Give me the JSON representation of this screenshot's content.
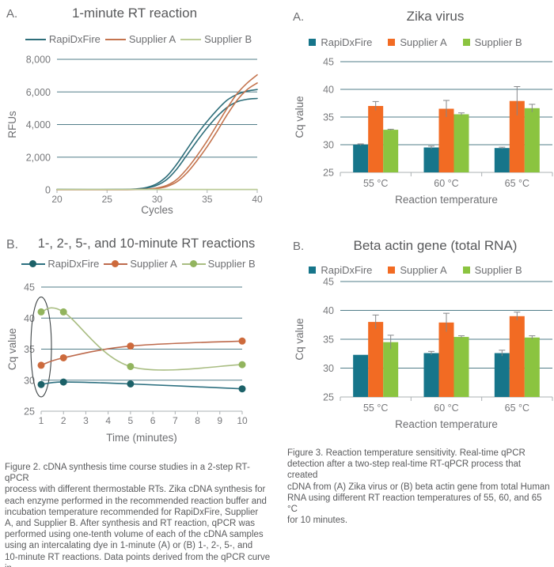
{
  "colors": {
    "grid": "#527e89",
    "axis": "#abb0b3",
    "tick_text": "#77787b",
    "axis_label": "#6d6e71",
    "title_text": "#57585a",
    "error_bar": "#85878a",
    "annotation": "#3f4547",
    "rapidxfire_bar": "#16758a",
    "supplier_a_bar": "#f26b23",
    "supplier_b_bar": "#8bc440"
  },
  "captions": {
    "figure2": "Figure 2. cDNA synthesis time course studies in a 2-step RT-qPCR\nprocess with different thermostable RTs. Zika cDNA synthesis for\neach enzyme performed in the recommended reaction buffer and\nincubation temperature recommended for RapiDxFire, Supplier\nA, and Supplier B. After synthesis and RT reaction, qPCR was\nperformed using one-tenth volume of each of the cDNA samples\nusing an intercalating dye in 1-minute (A) or (B) 1-, 2-, 5-, and\n10-minute RT reactions. Data points derived from the qPCR curve in\npanel A are encircled in panel B.",
    "figure3": "Figure 3. Reaction temperature sensitivity. Real-time qPCR\ndetection after a two-step real-time RT-qPCR process that created\ncDNA from (A) Zika virus or (B) beta actin gene from total Human\nRNA using different RT reaction temperatures of 55, 60, and 65 °C\nfor 10 minutes."
  },
  "chart_data": [
    {
      "id": "rt-1min",
      "panel_label": "A.",
      "title": "1-minute RT reaction",
      "type": "line",
      "legend_style": "line",
      "xlabel": "Cycles",
      "ylabel": "RFUs",
      "xlim": [
        20,
        40
      ],
      "ylim": [
        0,
        8000
      ],
      "xticks": [
        20,
        25,
        30,
        35,
        40
      ],
      "yticks": [
        {
          "v": 0,
          "label": "0"
        },
        {
          "v": 2000,
          "label": "2,000"
        },
        {
          "v": 4000,
          "label": "4,000"
        },
        {
          "v": 6000,
          "label": "6,000"
        },
        {
          "v": 8000,
          "label": "8,000"
        }
      ],
      "grid_values": [
        2000,
        4000,
        6000,
        8000
      ],
      "legend": [
        {
          "label": "RapiDxFire",
          "color": "#2e6e7a"
        },
        {
          "label": "Supplier A",
          "color": "#c4744e"
        },
        {
          "label": "Supplier B",
          "color": "#bccc96"
        }
      ],
      "traces": [
        {
          "series": "RapiDxFire",
          "line": "#2e6e7a",
          "points": [
            [
              20,
              20
            ],
            [
              26,
              20
            ],
            [
              28,
              60
            ],
            [
              29,
              150
            ],
            [
              30,
              380
            ],
            [
              31,
              850
            ],
            [
              32,
              1600
            ],
            [
              33,
              2500
            ],
            [
              34,
              3400
            ],
            [
              35,
              4200
            ],
            [
              36,
              4900
            ],
            [
              37,
              5500
            ],
            [
              38,
              5850
            ],
            [
              39,
              6050
            ],
            [
              40,
              6150
            ]
          ]
        },
        {
          "series": "RapiDxFire",
          "line": "#2e6e7a",
          "points": [
            [
              20,
              20
            ],
            [
              26,
              20
            ],
            [
              28,
              40
            ],
            [
              29,
              110
            ],
            [
              30,
              280
            ],
            [
              31,
              650
            ],
            [
              32,
              1300
            ],
            [
              33,
              2150
            ],
            [
              34,
              3000
            ],
            [
              35,
              3800
            ],
            [
              36,
              4500
            ],
            [
              37,
              5050
            ],
            [
              38,
              5400
            ],
            [
              39,
              5550
            ],
            [
              40,
              5600
            ]
          ]
        },
        {
          "series": "Supplier A",
          "line": "#c4744e",
          "points": [
            [
              20,
              10
            ],
            [
              27,
              10
            ],
            [
              29,
              40
            ],
            [
              30,
              110
            ],
            [
              31,
              280
            ],
            [
              32,
              650
            ],
            [
              33,
              1300
            ],
            [
              34,
              2100
            ],
            [
              35,
              3000
            ],
            [
              36,
              4000
            ],
            [
              37,
              5000
            ],
            [
              38,
              5900
            ],
            [
              39,
              6550
            ],
            [
              40,
              7050
            ]
          ]
        },
        {
          "series": "Supplier A",
          "line": "#c4744e",
          "points": [
            [
              20,
              10
            ],
            [
              27,
              10
            ],
            [
              29,
              30
            ],
            [
              30,
              80
            ],
            [
              31,
              210
            ],
            [
              32,
              500
            ],
            [
              33,
              1050
            ],
            [
              34,
              1800
            ],
            [
              35,
              2650
            ],
            [
              36,
              3600
            ],
            [
              37,
              4600
            ],
            [
              38,
              5500
            ],
            [
              39,
              6150
            ],
            [
              40,
              6550
            ]
          ]
        },
        {
          "series": "Supplier B",
          "line": "#bccc96",
          "points": [
            [
              20,
              20
            ],
            [
              30,
              20
            ],
            [
              40,
              20
            ]
          ]
        }
      ]
    },
    {
      "id": "rt-timecourse",
      "panel_label": "B.",
      "title": "1-, 2-, 5-, and 10-minute RT reactions",
      "type": "line",
      "legend_style": "line-dot",
      "xlabel": "Time (minutes)",
      "ylabel": "Cq value",
      "xlim": [
        1,
        10
      ],
      "ylim": [
        25,
        45
      ],
      "xticks": [
        1,
        2,
        3,
        4,
        5,
        6,
        7,
        8,
        9,
        10
      ],
      "yticks": [
        {
          "v": 25,
          "label": "25"
        },
        {
          "v": 30,
          "label": "30"
        },
        {
          "v": 35,
          "label": "35"
        },
        {
          "v": 40,
          "label": "40"
        },
        {
          "v": 45,
          "label": "45"
        }
      ],
      "grid_values": [
        30,
        35,
        40,
        45
      ],
      "legend": [
        {
          "label": "RapiDxFire",
          "color": "#2d7080",
          "dot": "#1c6168"
        },
        {
          "label": "Supplier A",
          "color": "#bd6a4c",
          "dot": "#cd6a3c"
        },
        {
          "label": "Supplier B",
          "color": "#a9bd82",
          "dot": "#92b45e"
        }
      ],
      "traces": [
        {
          "series": "RapiDxFire",
          "line": "#2d7080",
          "dot": "#1c6168",
          "points": [
            [
              1,
              29.3
            ],
            [
              2,
              29.7
            ],
            [
              5,
              29.4
            ],
            [
              10,
              28.6
            ]
          ]
        },
        {
          "series": "Supplier A",
          "line": "#bd6a4c",
          "dot": "#cd6a3c",
          "points": [
            [
              1,
              32.4
            ],
            [
              2,
              33.6
            ],
            [
              5,
              35.5
            ],
            [
              10,
              36.3
            ]
          ]
        },
        {
          "series": "Supplier B",
          "line": "#a9bd82",
          "dot": "#92b45e",
          "points": [
            [
              1,
              41.0
            ],
            [
              2,
              41.0
            ],
            [
              5,
              32.2
            ],
            [
              10,
              32.5
            ]
          ]
        }
      ],
      "annotation": {
        "type": "ellipse",
        "x": 1,
        "v_top": 43.4,
        "v_bottom": 27.3,
        "note": "encircles 1-minute data points from panel A"
      }
    },
    {
      "id": "zika-virus",
      "panel_label": "A.",
      "title": "Zika virus",
      "type": "bar",
      "legend_style": "square",
      "xlabel": "Reaction temperature",
      "ylabel": "Cq value",
      "ylim": [
        25,
        45
      ],
      "categories": [
        "55 °C",
        "60 °C",
        "65 °C"
      ],
      "yticks": [
        {
          "v": 25,
          "label": "25"
        },
        {
          "v": 30,
          "label": "30"
        },
        {
          "v": 35,
          "label": "35"
        },
        {
          "v": 40,
          "label": "40"
        },
        {
          "v": 45,
          "label": "45"
        }
      ],
      "grid_values": [
        30,
        35,
        40,
        45
      ],
      "legend": [
        {
          "label": "RapiDxFire",
          "color": "#16758a"
        },
        {
          "label": "Supplier A",
          "color": "#f26b23"
        },
        {
          "label": "Supplier B",
          "color": "#8bc440"
        }
      ],
      "series": [
        {
          "name": "RapiDxFire",
          "color": "#16758a",
          "values": [
            30.0,
            29.5,
            29.4
          ],
          "errors": [
            0.15,
            0.25,
            0.15
          ]
        },
        {
          "name": "Supplier A",
          "color": "#f26b23",
          "values": [
            37.0,
            36.5,
            37.9
          ],
          "errors": [
            0.8,
            1.5,
            2.6
          ]
        },
        {
          "name": "Supplier B",
          "color": "#8bc440",
          "values": [
            32.7,
            35.5,
            36.6
          ],
          "errors": [
            0.1,
            0.25,
            0.7
          ]
        }
      ]
    },
    {
      "id": "beta-actin",
      "panel_label": "B.",
      "title": "Beta actin gene (total RNA)",
      "type": "bar",
      "legend_style": "square",
      "xlabel": "Reaction temperature",
      "ylabel": "Cq value",
      "ylim": [
        25,
        45
      ],
      "categories": [
        "55 °C",
        "60 °C",
        "65 °C"
      ],
      "yticks": [
        {
          "v": 25,
          "label": "25"
        },
        {
          "v": 30,
          "label": "30"
        },
        {
          "v": 35,
          "label": "35"
        },
        {
          "v": 40,
          "label": "40"
        },
        {
          "v": 45,
          "label": "45"
        }
      ],
      "grid_values": [
        30,
        35,
        40,
        45
      ],
      "legend": [
        {
          "label": "RapiDxFire",
          "color": "#16758a"
        },
        {
          "label": "Supplier A",
          "color": "#f26b23"
        },
        {
          "label": "Supplier B",
          "color": "#8bc440"
        }
      ],
      "series": [
        {
          "name": "RapiDxFire",
          "color": "#16758a",
          "values": [
            32.3,
            32.6,
            32.6
          ],
          "errors": [
            0.0,
            0.3,
            0.5
          ]
        },
        {
          "name": "Supplier A",
          "color": "#f26b23",
          "values": [
            38.0,
            37.9,
            39.0
          ],
          "errors": [
            1.2,
            1.6,
            0.7
          ]
        },
        {
          "name": "Supplier B",
          "color": "#8bc440",
          "values": [
            34.5,
            35.4,
            35.3
          ],
          "errors": [
            1.2,
            0.2,
            0.3
          ]
        }
      ]
    }
  ]
}
